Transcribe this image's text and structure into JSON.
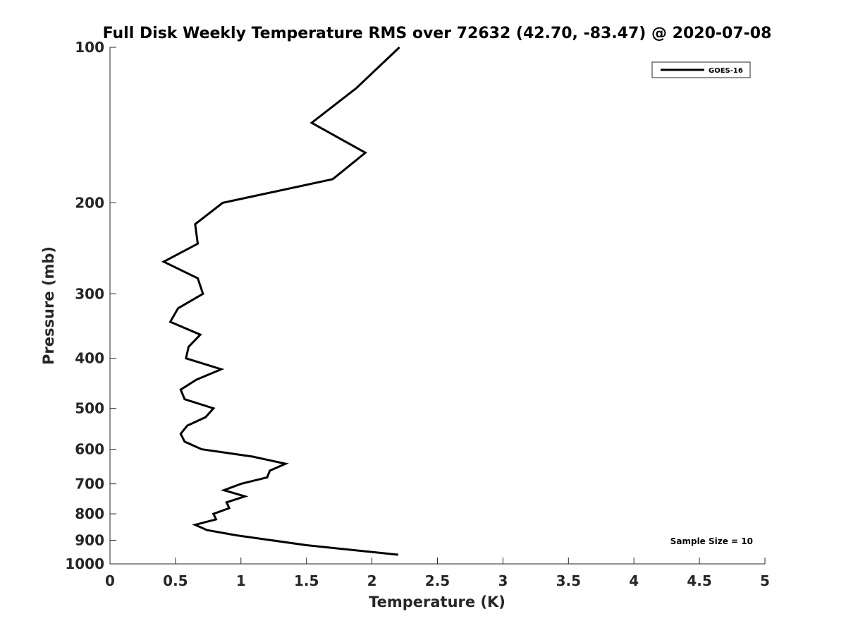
{
  "chart_data": {
    "type": "line",
    "title": "Full Disk Weekly Temperature RMS over 72632 (42.70, -83.47) @ 2020-07-08",
    "xlabel": "Temperature (K)",
    "ylabel": "Pressure (mb)",
    "xlim": [
      0,
      5
    ],
    "ylim": [
      100,
      1000
    ],
    "yscale": "log",
    "y_reversed": true,
    "xticks": [
      0,
      0.5,
      1,
      1.5,
      2,
      2.5,
      3,
      3.5,
      4,
      4.5,
      5
    ],
    "xtick_labels": [
      "0",
      "0.5",
      "1",
      "1.5",
      "2",
      "2.5",
      "3",
      "3.5",
      "4",
      "4.5",
      "5"
    ],
    "yticks": [
      100,
      200,
      300,
      400,
      500,
      600,
      700,
      800,
      900,
      1000
    ],
    "ytick_labels": [
      "100",
      "200",
      "300",
      "400",
      "500",
      "600",
      "700",
      "800",
      "900",
      "1000"
    ],
    "grid": false,
    "legend": {
      "placement": "top-right",
      "entries": [
        "GOES-16"
      ]
    },
    "annotation": "Sample Size = 10",
    "series": [
      {
        "name": "GOES-16",
        "color": "#000000",
        "x": [
          2.21,
          1.88,
          1.54,
          1.95,
          1.7,
          0.86,
          0.65,
          0.67,
          0.41,
          0.67,
          0.71,
          0.52,
          0.46,
          0.69,
          0.6,
          0.58,
          0.85,
          0.66,
          0.54,
          0.57,
          0.79,
          0.73,
          0.59,
          0.54,
          0.57,
          0.7,
          1.09,
          1.34,
          1.22,
          1.2,
          1.0,
          0.87,
          1.03,
          0.89,
          0.91,
          0.79,
          0.81,
          0.65,
          0.74,
          0.96,
          1.5,
          2.2
        ],
        "y": [
          100,
          120,
          140,
          160,
          180,
          200,
          220,
          240,
          260,
          280,
          300,
          320,
          340,
          360,
          380,
          400,
          420,
          440,
          460,
          480,
          500,
          520,
          540,
          560,
          580,
          600,
          620,
          640,
          660,
          680,
          700,
          720,
          740,
          760,
          780,
          800,
          820,
          840,
          860,
          880,
          920,
          960
        ]
      }
    ]
  }
}
